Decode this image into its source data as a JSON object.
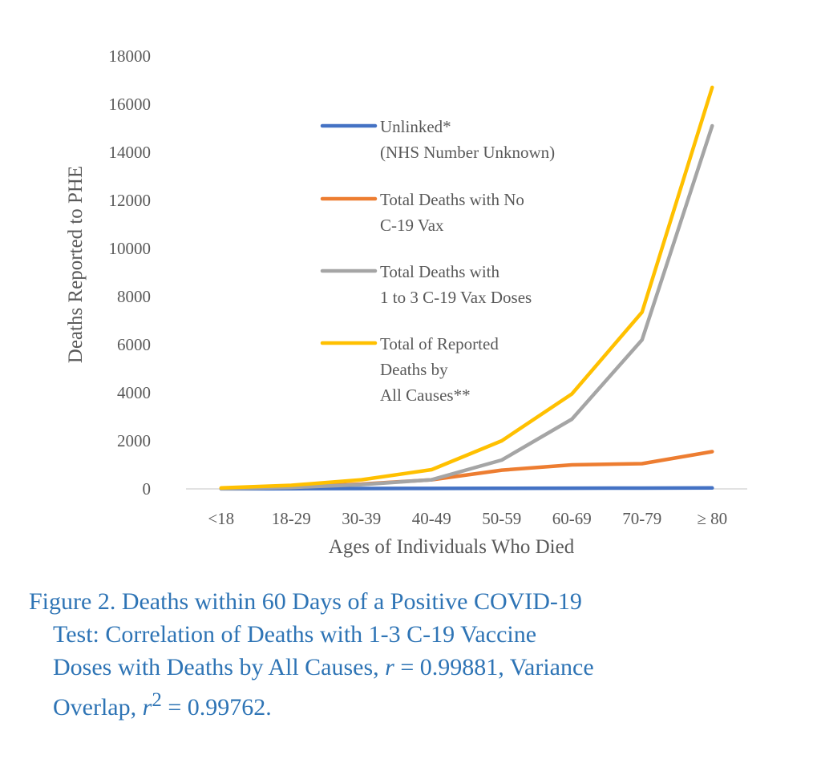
{
  "chart_data": {
    "type": "line",
    "categories": [
      "<18",
      "18-29",
      "30-39",
      "40-49",
      "50-59",
      "60-69",
      "70-79",
      "≥ 80"
    ],
    "ylim": [
      0,
      18000
    ],
    "yticks": [
      0,
      2000,
      4000,
      6000,
      8000,
      10000,
      12000,
      14000,
      16000,
      18000
    ],
    "ylabel": "Deaths Reported to PHE",
    "xlabel": "Ages of Individuals Who Died",
    "grid": "horizontal-baseline-only",
    "legend_position": "inside-center-left",
    "series": [
      {
        "name": "Unlinked* (NHS Number Unknown)",
        "legend_lines": [
          "Unlinked*",
          "(NHS Number Unknown)"
        ],
        "color": "#4472c4",
        "values": [
          5,
          10,
          15,
          20,
          25,
          30,
          35,
          40
        ]
      },
      {
        "name": "Total Deaths with No C-19 Vax",
        "legend_lines": [
          "Total Deaths with No",
          "C-19 Vax"
        ],
        "color": "#ed7d31",
        "values": [
          30,
          90,
          200,
          380,
          780,
          1000,
          1050,
          1550
        ]
      },
      {
        "name": "Total Deaths with 1 to 3 C-19 Vax Doses",
        "legend_lines": [
          "Total Deaths with",
          "1 to 3 C-19 Vax Doses"
        ],
        "color": "#a5a5a5",
        "values": [
          10,
          60,
          180,
          380,
          1200,
          2900,
          6200,
          15100
        ]
      },
      {
        "name": "Total of Reported Deaths by All Causes**",
        "legend_lines": [
          "Total of Reported",
          "Deaths by",
          "All Causes**"
        ],
        "color": "#ffc000",
        "values": [
          40,
          150,
          380,
          800,
          2000,
          3950,
          7350,
          16700
        ]
      }
    ]
  },
  "caption": {
    "line1": "Figure 2. Deaths within 60 Days of a Positive COVID-19",
    "line2": "Test: Correlation of Deaths with 1-3 C-19 Vaccine",
    "line3_a": "Doses with Deaths by All Causes, ",
    "r_symbol": "r",
    "line3_b": " = 0.99881, Variance",
    "line4_a": "Overlap, ",
    "r2_symbol": "r",
    "r2_exp": "2",
    "line4_b": " = 0.99762."
  }
}
